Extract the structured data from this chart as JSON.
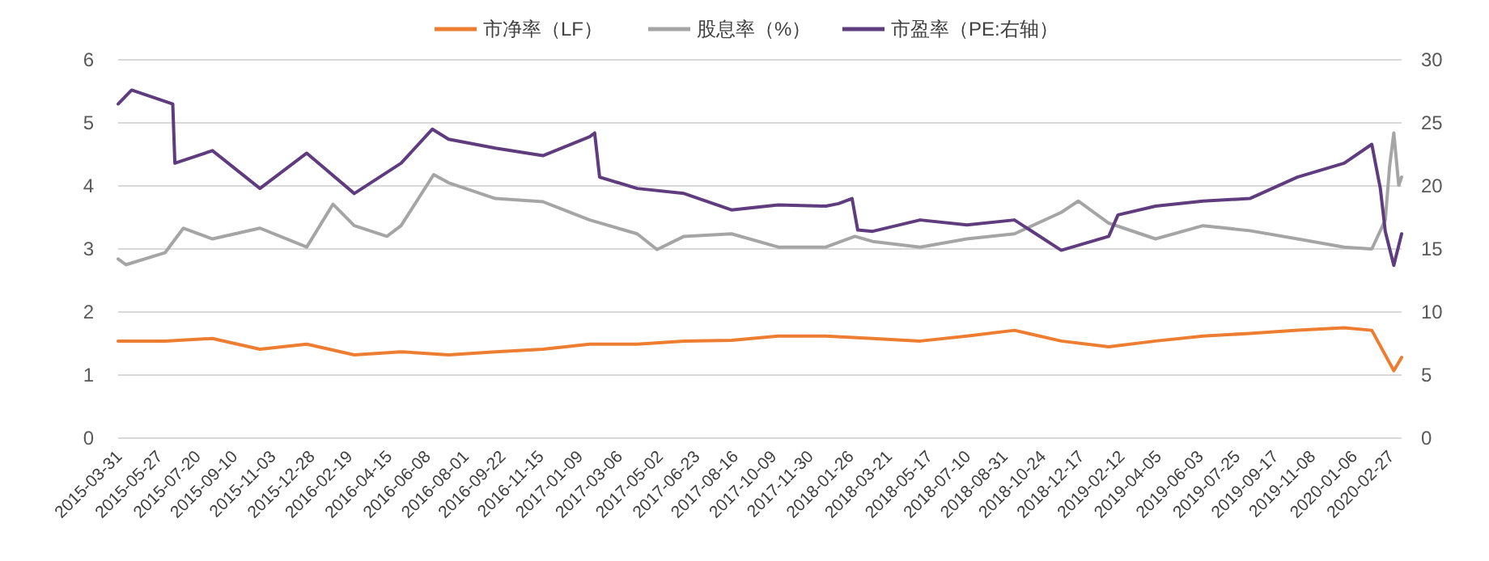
{
  "chart_data": {
    "type": "line",
    "grid": "y",
    "legend": "top",
    "xlim": [
      "2015-03-31",
      "2020-03-14"
    ],
    "xticks": [
      "2015-03-31",
      "2015-05-27",
      "2015-07-20",
      "2015-09-10",
      "2015-11-03",
      "2015-12-28",
      "2016-02-19",
      "2016-04-15",
      "2016-06-08",
      "2016-08-01",
      "2016-09-22",
      "2016-11-15",
      "2017-01-09",
      "2017-03-06",
      "2017-05-02",
      "2017-06-23",
      "2017-08-16",
      "2017-10-09",
      "2017-11-30",
      "2018-01-26",
      "2018-03-21",
      "2018-05-17",
      "2018-07-10",
      "2018-08-31",
      "2018-10-24",
      "2018-12-17",
      "2019-02-12",
      "2019-04-05",
      "2019-06-03",
      "2019-07-25",
      "2019-09-17",
      "2019-11-08",
      "2020-01-06",
      "2020-02-27"
    ],
    "ylim": [
      0,
      6
    ],
    "yticks": [
      0,
      1,
      2,
      3,
      4,
      5,
      6
    ],
    "y2lim": [
      0,
      30
    ],
    "y2ticks": [
      0,
      5,
      10,
      15,
      20,
      25,
      30
    ],
    "series": [
      {
        "name": "市净率（LF）",
        "color": "#ed7d31",
        "x": [
          "2015-03-31",
          "2015-06-05",
          "2015-08-11",
          "2015-10-17",
          "2015-12-22",
          "2016-02-27",
          "2016-05-03",
          "2016-07-09",
          "2016-09-13",
          "2016-11-19",
          "2017-01-24",
          "2017-04-01",
          "2017-06-06",
          "2017-08-12",
          "2017-10-17",
          "2017-12-23",
          "2018-02-27",
          "2018-05-05",
          "2018-07-10",
          "2018-09-15",
          "2018-11-20",
          "2019-01-26",
          "2019-04-02",
          "2019-06-08",
          "2019-08-13",
          "2019-10-19",
          "2019-12-24",
          "2020-02-01",
          "2020-03-03",
          "2020-03-14"
        ],
        "values": [
          1.54,
          1.54,
          1.58,
          1.41,
          1.49,
          1.32,
          1.37,
          1.32,
          1.37,
          1.41,
          1.49,
          1.49,
          1.54,
          1.55,
          1.62,
          1.62,
          1.58,
          1.54,
          1.62,
          1.71,
          1.54,
          1.45,
          1.54,
          1.62,
          1.66,
          1.71,
          1.75,
          1.71,
          1.07,
          1.28
        ]
      },
      {
        "name": "股息率（%）",
        "color": "#a5a5a5",
        "x": [
          "2015-03-31",
          "2015-04-11",
          "2015-06-05",
          "2015-07-01",
          "2015-08-11",
          "2015-10-17",
          "2015-12-22",
          "2016-01-28",
          "2016-02-27",
          "2016-04-13",
          "2016-05-03",
          "2016-06-18",
          "2016-07-09",
          "2016-09-13",
          "2016-11-19",
          "2017-01-24",
          "2017-04-01",
          "2017-04-29",
          "2017-06-06",
          "2017-08-12",
          "2017-10-17",
          "2017-12-23",
          "2018-02-02",
          "2018-02-27",
          "2018-05-05",
          "2018-07-10",
          "2018-09-15",
          "2018-11-20",
          "2018-12-14",
          "2019-01-26",
          "2019-04-02",
          "2019-06-08",
          "2019-08-13",
          "2019-10-19",
          "2019-12-24",
          "2020-02-01",
          "2020-02-20",
          "2020-02-26",
          "2020-03-03",
          "2020-03-10",
          "2020-03-14"
        ],
        "values": [
          2.84,
          2.75,
          2.94,
          3.33,
          3.16,
          3.33,
          3.03,
          3.71,
          3.37,
          3.2,
          3.37,
          4.18,
          4.05,
          3.8,
          3.75,
          3.46,
          3.24,
          2.99,
          3.2,
          3.24,
          3.03,
          3.03,
          3.2,
          3.12,
          3.03,
          3.16,
          3.24,
          3.58,
          3.76,
          3.41,
          3.16,
          3.37,
          3.29,
          3.16,
          3.03,
          3.0,
          3.46,
          4.3,
          4.84,
          4.01,
          4.14
        ]
      },
      {
        "name": "市盈率（PE:右轴）",
        "color": "#5f3c7e",
        "axis": "y2",
        "x": [
          "2015-03-31",
          "2015-04-19",
          "2015-06-05",
          "2015-06-16",
          "2015-06-19",
          "2015-08-11",
          "2015-10-17",
          "2015-12-22",
          "2016-02-27",
          "2016-05-03",
          "2016-06-16",
          "2016-07-09",
          "2016-09-13",
          "2016-11-19",
          "2017-01-24",
          "2017-01-31",
          "2017-02-07",
          "2017-04-01",
          "2017-06-06",
          "2017-08-12",
          "2017-10-17",
          "2017-12-23",
          "2018-01-10",
          "2018-01-29",
          "2018-02-06",
          "2018-02-27",
          "2018-05-05",
          "2018-07-10",
          "2018-09-15",
          "2018-11-20",
          "2019-01-26",
          "2019-02-08",
          "2019-04-02",
          "2019-06-08",
          "2019-08-13",
          "2019-10-19",
          "2019-12-24",
          "2020-02-01",
          "2020-02-13",
          "2020-02-20",
          "2020-03-03",
          "2020-03-14"
        ],
        "values": [
          26.5,
          27.6,
          26.7,
          26.5,
          21.8,
          22.8,
          19.8,
          22.6,
          19.4,
          21.8,
          24.5,
          23.7,
          23.0,
          22.4,
          23.9,
          24.2,
          20.7,
          19.8,
          19.4,
          18.1,
          18.5,
          18.4,
          18.6,
          19.0,
          16.5,
          16.4,
          17.3,
          16.9,
          17.3,
          14.9,
          16.0,
          17.7,
          18.4,
          18.8,
          19.0,
          20.7,
          21.8,
          23.3,
          19.8,
          16.4,
          13.7,
          16.2
        ]
      }
    ]
  }
}
